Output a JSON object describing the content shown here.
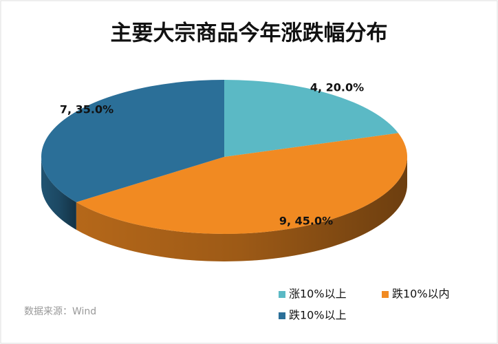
{
  "chart_data": {
    "type": "pie",
    "title": "主要大宗商品今年涨跌幅分布",
    "categories": [
      "涨10%以上",
      "跌10%以内",
      "跌10%以上"
    ],
    "values": [
      4,
      9,
      7
    ],
    "value_labels": [
      "4, 20.0%",
      "9, 45.0%",
      "7, 35.0%"
    ],
    "colors": [
      "#5bb9c5",
      "#f18a22",
      "#2b6f98"
    ],
    "source": "数据来源：Wind"
  }
}
